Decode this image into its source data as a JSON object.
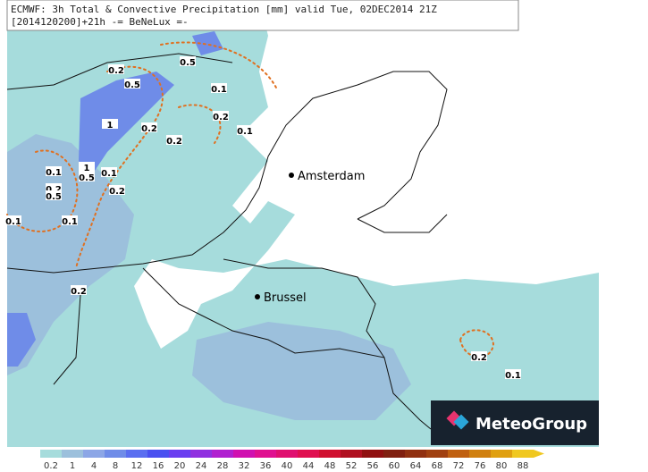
{
  "header": {
    "lines": [
      "ECMWF: 3h Total & Convective Precipitation [mm] valid Tue, 02DEC2014 21Z",
      "[2014120200]+21h -= BeNeLux =-"
    ]
  },
  "cities": [
    "Amsterdam",
    "Brussel"
  ],
  "contour_labels": [
    "0.2",
    "0.5",
    "0.5",
    "0.1",
    "0.2",
    "0.1",
    "1",
    "0.2",
    "0.2",
    "0.1",
    "1",
    "0.1",
    "0.5",
    "0.2",
    "0.5",
    "0.2",
    "0.1",
    "0.1",
    "0.2",
    "0.2",
    "0.1"
  ],
  "legend": {
    "labels": [
      "0.2",
      "1",
      "4",
      "8",
      "12",
      "16",
      "20",
      "24",
      "28",
      "32",
      "36",
      "40",
      "44",
      "48",
      "52",
      "56",
      "60",
      "64",
      "68",
      "72",
      "76",
      "80",
      "88"
    ],
    "colors": [
      "#a6dcdc",
      "#9cc0dc",
      "#8ca6e6",
      "#6f8ce8",
      "#5a6ef0",
      "#4a50f0",
      "#6a3ef0",
      "#9030e0",
      "#b020d0",
      "#d010b0",
      "#e01090",
      "#e01070",
      "#e01050",
      "#d01030",
      "#b01020",
      "#901010",
      "#802010",
      "#903010",
      "#a04010",
      "#c06010",
      "#d08010",
      "#e0a010",
      "#f0c820"
    ]
  },
  "logo": {
    "text": "MeteoGroup"
  }
}
